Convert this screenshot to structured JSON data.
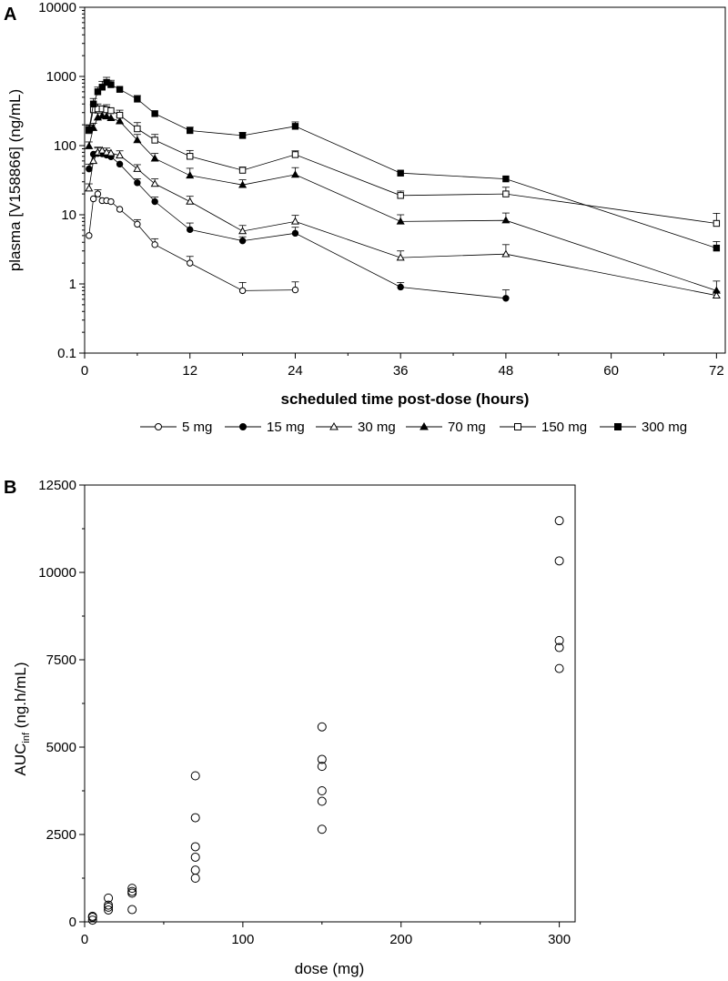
{
  "chart_data": [
    {
      "panel": "A",
      "type": "line",
      "xlabel": "scheduled time post-dose (hours)",
      "ylabel": "plasma [V158866] (ng/mL)",
      "xlim": [
        0,
        73
      ],
      "ylim": [
        0.1,
        10000
      ],
      "yscale": "log",
      "xticks": [
        "0",
        "12",
        "24",
        "36",
        "48",
        "60",
        "72"
      ],
      "yticks": [
        "0.1",
        "1",
        "10",
        "100",
        "1000",
        "10000"
      ],
      "legend_position": "bottom",
      "series": [
        {
          "name": "5 mg",
          "marker": "circle",
          "filled": false,
          "x": [
            0.5,
            1,
            1.5,
            2,
            2.5,
            3,
            4,
            6,
            8,
            12,
            18,
            24
          ],
          "y": [
            5,
            17,
            20,
            16,
            16,
            15.5,
            12,
            7.3,
            3.7,
            2.0,
            0.8,
            0.82
          ],
          "err": [
            0,
            0,
            3,
            0,
            0,
            0,
            0,
            1.2,
            0.8,
            0.5,
            0.25,
            0.25
          ]
        },
        {
          "name": "15 mg",
          "marker": "circle",
          "filled": true,
          "x": [
            0.5,
            1,
            1.5,
            2,
            2.5,
            3,
            4,
            6,
            8,
            12,
            18,
            24,
            36,
            48
          ],
          "y": [
            46,
            75,
            77,
            76,
            73,
            69,
            54,
            29,
            15.5,
            6.1,
            4.2,
            5.4,
            0.9,
            0.62
          ],
          "err": [
            8,
            0,
            15,
            0,
            12,
            0,
            0,
            4,
            2.5,
            1.5,
            0.6,
            1.2,
            0.15,
            0.2
          ]
        },
        {
          "name": "30 mg",
          "marker": "triangle",
          "filled": false,
          "x": [
            0.5,
            1,
            1.5,
            2,
            2.5,
            3,
            4,
            6,
            8,
            12,
            18,
            24,
            36,
            48,
            72
          ],
          "y": [
            24,
            60,
            80,
            85,
            80,
            78,
            72,
            46,
            28,
            15.5,
            5.8,
            8.0,
            2.4,
            2.7,
            0.68
          ],
          "err": [
            4,
            0,
            15,
            0,
            12,
            0,
            12,
            7,
            5,
            3,
            1.2,
            1.8,
            0.6,
            1.0,
            0.1
          ]
        },
        {
          "name": "70 mg",
          "marker": "triangle",
          "filled": true,
          "x": [
            0.5,
            1,
            1.5,
            2,
            2.5,
            3,
            4,
            6,
            8,
            12,
            18,
            24,
            36,
            48,
            72
          ],
          "y": [
            98,
            180,
            255,
            270,
            265,
            250,
            225,
            120,
            65,
            37,
            27,
            38,
            8.0,
            8.3,
            0.8
          ],
          "err": [
            15,
            30,
            40,
            0,
            40,
            0,
            40,
            25,
            12,
            10,
            5,
            10,
            2,
            2.3,
            0.3
          ]
        },
        {
          "name": "150 mg",
          "marker": "square",
          "filled": false,
          "x": [
            0.5,
            1,
            1.5,
            2,
            2.5,
            3,
            4,
            6,
            8,
            12,
            18,
            24,
            36,
            48,
            72
          ],
          "y": [
            165,
            330,
            340,
            340,
            330,
            320,
            275,
            175,
            120,
            70,
            44,
            74,
            19,
            20,
            7.5
          ],
          "err": [
            30,
            60,
            60,
            0,
            60,
            0,
            50,
            40,
            25,
            15,
            5,
            10,
            3,
            5,
            3
          ]
        },
        {
          "name": "300 mg",
          "marker": "square",
          "filled": true,
          "x": [
            0.5,
            1,
            1.5,
            2,
            2.5,
            3,
            4,
            6,
            8,
            12,
            18,
            24,
            36,
            48,
            72
          ],
          "y": [
            170,
            400,
            600,
            700,
            820,
            760,
            650,
            470,
            290,
            165,
            140,
            190,
            40,
            33,
            3.3
          ],
          "err": [
            30,
            80,
            100,
            150,
            150,
            120,
            0,
            60,
            0,
            20,
            15,
            30,
            0,
            0,
            0.8
          ]
        }
      ]
    },
    {
      "panel": "B",
      "type": "scatter",
      "xlabel": "dose (mg)",
      "ylabel_main": "AUC",
      "ylabel_sub": "inf",
      "ylabel_unit": " (ng.h/mL)",
      "xlim": [
        0,
        310
      ],
      "ylim": [
        0,
        12500
      ],
      "xticks": [
        "0",
        "100",
        "200",
        "300"
      ],
      "yticks": [
        "0",
        "2500",
        "5000",
        "7500",
        "10000",
        "12500"
      ],
      "points": [
        {
          "x": 5,
          "y": 50
        },
        {
          "x": 5,
          "y": 130
        },
        {
          "x": 5,
          "y": 160
        },
        {
          "x": 15,
          "y": 340
        },
        {
          "x": 15,
          "y": 420
        },
        {
          "x": 15,
          "y": 480
        },
        {
          "x": 15,
          "y": 680
        },
        {
          "x": 30,
          "y": 350
        },
        {
          "x": 30,
          "y": 820
        },
        {
          "x": 30,
          "y": 870
        },
        {
          "x": 30,
          "y": 960
        },
        {
          "x": 70,
          "y": 1250
        },
        {
          "x": 70,
          "y": 1480
        },
        {
          "x": 70,
          "y": 1850
        },
        {
          "x": 70,
          "y": 2150
        },
        {
          "x": 70,
          "y": 2980
        },
        {
          "x": 70,
          "y": 4180
        },
        {
          "x": 150,
          "y": 2650
        },
        {
          "x": 150,
          "y": 3450
        },
        {
          "x": 150,
          "y": 3750
        },
        {
          "x": 150,
          "y": 4450
        },
        {
          "x": 150,
          "y": 4650
        },
        {
          "x": 150,
          "y": 5580
        },
        {
          "x": 300,
          "y": 7250
        },
        {
          "x": 300,
          "y": 7850
        },
        {
          "x": 300,
          "y": 8050
        },
        {
          "x": 300,
          "y": 10330
        },
        {
          "x": 300,
          "y": 11480
        }
      ]
    }
  ]
}
